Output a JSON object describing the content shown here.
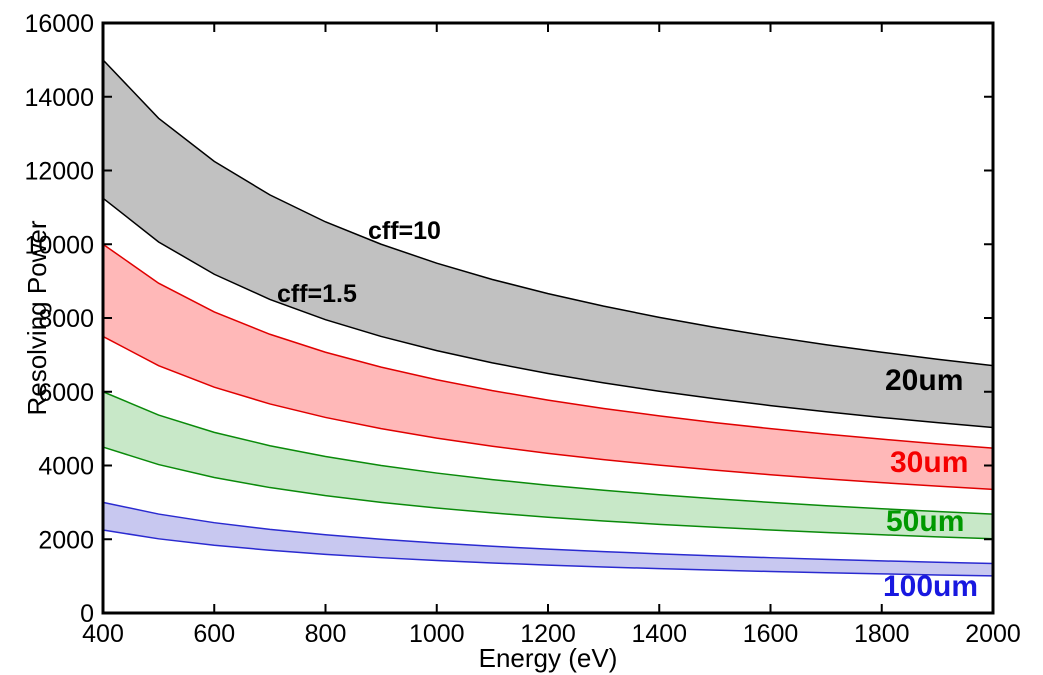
{
  "chart_data": {
    "type": "area",
    "title": "",
    "xlabel": "Energy (eV)",
    "ylabel": "Resolving Power",
    "xlim": [
      400,
      2000
    ],
    "ylim": [
      0,
      16000
    ],
    "grid": false,
    "legend_position": "none",
    "xticks": [
      400,
      600,
      800,
      1000,
      1200,
      1400,
      1600,
      1800,
      2000
    ],
    "xtick_labels": [
      "400",
      "600",
      "800",
      "1000",
      "1200",
      "1400",
      "1600",
      "1800",
      "2000"
    ],
    "yticks": [
      0,
      2000,
      4000,
      6000,
      8000,
      10000,
      12000,
      14000,
      16000
    ],
    "ytick_labels": [
      "0",
      "2000",
      "4000",
      "6000",
      "8000",
      "10000",
      "12000",
      "14000",
      "16000"
    ],
    "x": [
      400,
      500,
      600,
      700,
      800,
      900,
      1000,
      1100,
      1200,
      1300,
      1400,
      1500,
      1600,
      1700,
      1800,
      1900,
      2000
    ],
    "bands": [
      {
        "name": "20um",
        "label": "20um",
        "label_color": "#000000",
        "stroke": "#000000",
        "fill": "#c1c1c1",
        "upper": [
          15000,
          13416,
          12247,
          11339,
          10607,
          10000,
          9487,
          9045,
          8660,
          8321,
          8018,
          7746,
          7500,
          7276,
          7071,
          6882,
          6708
        ],
        "lower": [
          11250,
          10062,
          9186,
          8504,
          7955,
          7500,
          7115,
          6784,
          6495,
          6240,
          6013,
          5809,
          5625,
          5457,
          5303,
          5162,
          5031
        ]
      },
      {
        "name": "30um",
        "label": "30um",
        "label_color": "#f50000",
        "stroke": "#e00000",
        "fill": "#ffb8b8",
        "upper": [
          10000,
          8944,
          8165,
          7559,
          7071,
          6667,
          6325,
          6030,
          5774,
          5547,
          5345,
          5164,
          5000,
          4851,
          4714,
          4588,
          4472
        ],
        "lower": [
          7500,
          6708,
          6124,
          5669,
          5303,
          5000,
          4743,
          4523,
          4330,
          4160,
          4009,
          3873,
          3750,
          3638,
          3536,
          3441,
          3354
        ]
      },
      {
        "name": "50um",
        "label": "50um",
        "label_color": "#009900",
        "stroke": "#0a8a0a",
        "fill": "#c8e8c8",
        "upper": [
          6000,
          5367,
          4899,
          4536,
          4243,
          4000,
          3795,
          3618,
          3464,
          3328,
          3207,
          3098,
          3000,
          2910,
          2828,
          2753,
          2683
        ],
        "lower": [
          4500,
          4025,
          3674,
          3402,
          3182,
          3000,
          2846,
          2714,
          2598,
          2496,
          2405,
          2324,
          2250,
          2183,
          2121,
          2065,
          2012
        ]
      },
      {
        "name": "100um",
        "label": "100um",
        "label_color": "#1818e0",
        "stroke": "#2a2ad0",
        "fill": "#c8c8f0",
        "upper": [
          3000,
          2683,
          2449,
          2268,
          2121,
          2000,
          1897,
          1809,
          1732,
          1664,
          1604,
          1549,
          1500,
          1455,
          1414,
          1376,
          1342
        ],
        "lower": [
          2250,
          2012,
          1837,
          1701,
          1591,
          1500,
          1423,
          1357,
          1299,
          1248,
          1203,
          1162,
          1125,
          1091,
          1061,
          1032,
          1006
        ]
      }
    ],
    "annotations": [
      {
        "text": "cff=10"
      },
      {
        "text": "cff=1.5"
      }
    ]
  }
}
